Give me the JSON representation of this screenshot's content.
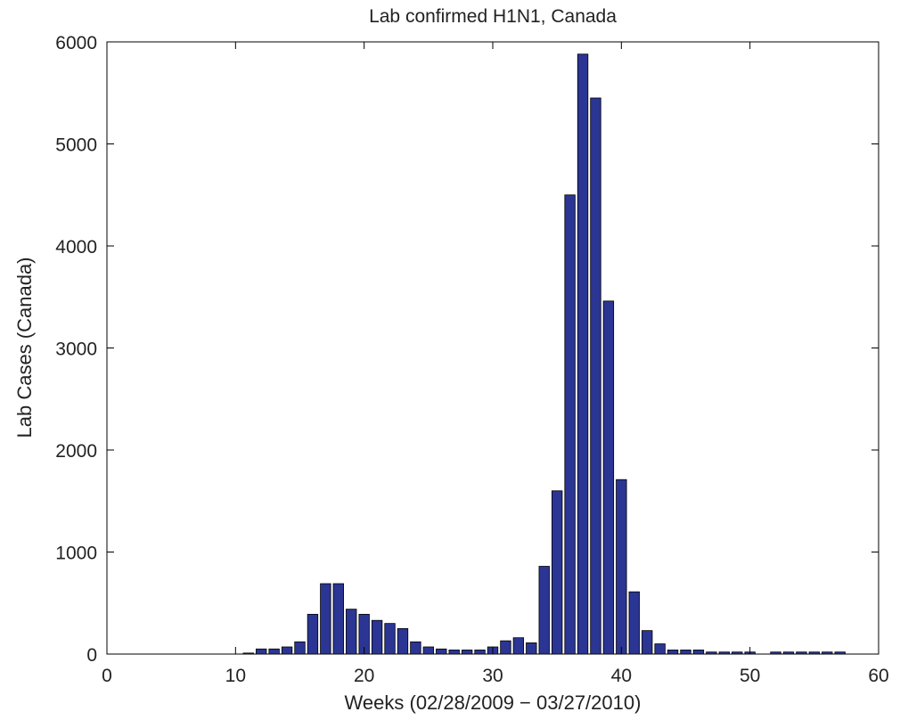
{
  "chart_data": {
    "type": "bar",
    "title": "Lab confirmed H1N1, Canada",
    "xlabel": "Weeks (02/28/2009 − 03/27/2010)",
    "ylabel": "Lab Cases (Canada)",
    "xlim": [
      0,
      60
    ],
    "ylim": [
      0,
      6000
    ],
    "xticks": [
      0,
      10,
      20,
      30,
      40,
      50,
      60
    ],
    "yticks": [
      0,
      1000,
      2000,
      3000,
      4000,
      5000,
      6000
    ],
    "grid": false,
    "legend": "none",
    "bar_color": "#2b3593",
    "bar_edge_color": "#000000",
    "x": [
      11,
      12,
      13,
      14,
      15,
      16,
      17,
      18,
      19,
      20,
      21,
      22,
      23,
      24,
      25,
      26,
      27,
      28,
      29,
      30,
      31,
      32,
      33,
      34,
      35,
      36,
      37,
      38,
      39,
      40,
      41,
      42,
      43,
      44,
      45,
      46,
      47,
      48,
      49,
      50,
      51,
      52,
      53,
      54,
      55,
      56,
      57
    ],
    "values": [
      10,
      50,
      50,
      70,
      120,
      390,
      690,
      690,
      440,
      390,
      330,
      300,
      250,
      120,
      70,
      50,
      40,
      40,
      40,
      70,
      130,
      160,
      110,
      860,
      1600,
      4500,
      5880,
      5450,
      3460,
      1710,
      610,
      230,
      100,
      40,
      40,
      40,
      20,
      20,
      20,
      20,
      0,
      20,
      20,
      20,
      20,
      20,
      20
    ]
  }
}
